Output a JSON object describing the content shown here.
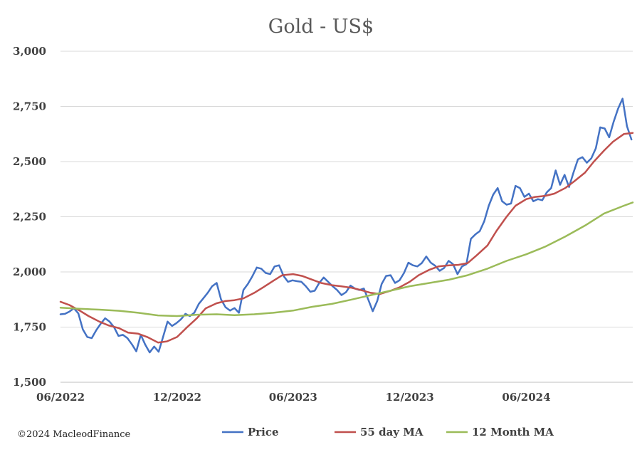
{
  "chart_data": {
    "type": "line",
    "title": "Gold - US$",
    "xlabel": "",
    "ylabel": "",
    "ylim": [
      1500,
      3000
    ],
    "xlim": [
      "2022-06-01",
      "2024-11-15"
    ],
    "y_ticks": [
      "1,500",
      "1,750",
      "2,000",
      "2,250",
      "2,500",
      "2,750",
      "3,000"
    ],
    "y_tick_values": [
      1500,
      1750,
      2000,
      2250,
      2500,
      2750,
      3000
    ],
    "x_ticks": [
      "06/2022",
      "12/2022",
      "06/2023",
      "12/2023",
      "06/2024"
    ],
    "x_tick_dates": [
      "2022-06-01",
      "2022-12-01",
      "2023-06-01",
      "2023-12-01",
      "2024-06-01"
    ],
    "grid": "horizontal",
    "legend_position": "bottom",
    "copyright": "©2024 MacleodFinance",
    "series": [
      {
        "name": "Price",
        "color": "#4472C4",
        "points": [
          [
            "2022-06-01",
            1808
          ],
          [
            "2022-06-08",
            1810
          ],
          [
            "2022-06-15",
            1820
          ],
          [
            "2022-06-22",
            1835
          ],
          [
            "2022-06-29",
            1812
          ],
          [
            "2022-07-06",
            1740
          ],
          [
            "2022-07-13",
            1705
          ],
          [
            "2022-07-20",
            1700
          ],
          [
            "2022-07-27",
            1735
          ],
          [
            "2022-08-03",
            1765
          ],
          [
            "2022-08-10",
            1790
          ],
          [
            "2022-08-17",
            1775
          ],
          [
            "2022-08-24",
            1750
          ],
          [
            "2022-08-31",
            1710
          ],
          [
            "2022-09-07",
            1715
          ],
          [
            "2022-09-14",
            1700
          ],
          [
            "2022-09-21",
            1672
          ],
          [
            "2022-09-28",
            1640
          ],
          [
            "2022-10-05",
            1715
          ],
          [
            "2022-10-12",
            1670
          ],
          [
            "2022-10-19",
            1635
          ],
          [
            "2022-10-26",
            1662
          ],
          [
            "2022-11-02",
            1638
          ],
          [
            "2022-11-09",
            1705
          ],
          [
            "2022-11-16",
            1775
          ],
          [
            "2022-11-23",
            1755
          ],
          [
            "2022-11-30",
            1768
          ],
          [
            "2022-12-07",
            1785
          ],
          [
            "2022-12-14",
            1810
          ],
          [
            "2022-12-21",
            1800
          ],
          [
            "2022-12-28",
            1815
          ],
          [
            "2023-01-04",
            1855
          ],
          [
            "2023-01-11",
            1880
          ],
          [
            "2023-01-18",
            1905
          ],
          [
            "2023-01-25",
            1935
          ],
          [
            "2023-02-01",
            1950
          ],
          [
            "2023-02-08",
            1875
          ],
          [
            "2023-02-15",
            1840
          ],
          [
            "2023-02-22",
            1825
          ],
          [
            "2023-03-01",
            1836
          ],
          [
            "2023-03-08",
            1815
          ],
          [
            "2023-03-15",
            1918
          ],
          [
            "2023-03-22",
            1945
          ],
          [
            "2023-03-29",
            1980
          ],
          [
            "2023-04-05",
            2020
          ],
          [
            "2023-04-12",
            2015
          ],
          [
            "2023-04-19",
            1995
          ],
          [
            "2023-04-26",
            1990
          ],
          [
            "2023-05-03",
            2025
          ],
          [
            "2023-05-10",
            2030
          ],
          [
            "2023-05-17",
            1982
          ],
          [
            "2023-05-24",
            1955
          ],
          [
            "2023-05-31",
            1962
          ],
          [
            "2023-06-07",
            1958
          ],
          [
            "2023-06-14",
            1955
          ],
          [
            "2023-06-21",
            1935
          ],
          [
            "2023-06-28",
            1910
          ],
          [
            "2023-07-05",
            1915
          ],
          [
            "2023-07-12",
            1950
          ],
          [
            "2023-07-19",
            1975
          ],
          [
            "2023-07-26",
            1955
          ],
          [
            "2023-08-02",
            1935
          ],
          [
            "2023-08-09",
            1918
          ],
          [
            "2023-08-16",
            1895
          ],
          [
            "2023-08-23",
            1908
          ],
          [
            "2023-08-30",
            1938
          ],
          [
            "2023-09-06",
            1925
          ],
          [
            "2023-09-13",
            1918
          ],
          [
            "2023-09-20",
            1925
          ],
          [
            "2023-09-27",
            1875
          ],
          [
            "2023-10-04",
            1822
          ],
          [
            "2023-10-11",
            1868
          ],
          [
            "2023-10-18",
            1945
          ],
          [
            "2023-10-25",
            1982
          ],
          [
            "2023-11-01",
            1985
          ],
          [
            "2023-11-08",
            1950
          ],
          [
            "2023-11-15",
            1962
          ],
          [
            "2023-11-22",
            1995
          ],
          [
            "2023-11-29",
            2042
          ],
          [
            "2023-12-06",
            2030
          ],
          [
            "2023-12-13",
            2025
          ],
          [
            "2023-12-20",
            2040
          ],
          [
            "2023-12-27",
            2070
          ],
          [
            "2024-01-03",
            2042
          ],
          [
            "2024-01-10",
            2028
          ],
          [
            "2024-01-17",
            2005
          ],
          [
            "2024-01-24",
            2018
          ],
          [
            "2024-01-31",
            2050
          ],
          [
            "2024-02-07",
            2035
          ],
          [
            "2024-02-14",
            1990
          ],
          [
            "2024-02-21",
            2025
          ],
          [
            "2024-02-28",
            2035
          ],
          [
            "2024-03-06",
            2150
          ],
          [
            "2024-03-13",
            2170
          ],
          [
            "2024-03-20",
            2185
          ],
          [
            "2024-03-27",
            2230
          ],
          [
            "2024-04-03",
            2300
          ],
          [
            "2024-04-10",
            2350
          ],
          [
            "2024-04-17",
            2380
          ],
          [
            "2024-04-24",
            2320
          ],
          [
            "2024-05-01",
            2305
          ],
          [
            "2024-05-08",
            2310
          ],
          [
            "2024-05-15",
            2390
          ],
          [
            "2024-05-22",
            2380
          ],
          [
            "2024-05-29",
            2340
          ],
          [
            "2024-06-05",
            2355
          ],
          [
            "2024-06-12",
            2320
          ],
          [
            "2024-06-19",
            2330
          ],
          [
            "2024-06-26",
            2325
          ],
          [
            "2024-07-03",
            2360
          ],
          [
            "2024-07-10",
            2380
          ],
          [
            "2024-07-17",
            2460
          ],
          [
            "2024-07-24",
            2395
          ],
          [
            "2024-07-31",
            2440
          ],
          [
            "2024-08-07",
            2385
          ],
          [
            "2024-08-14",
            2450
          ],
          [
            "2024-08-21",
            2510
          ],
          [
            "2024-08-28",
            2520
          ],
          [
            "2024-09-04",
            2495
          ],
          [
            "2024-09-11",
            2515
          ],
          [
            "2024-09-18",
            2560
          ],
          [
            "2024-09-25",
            2655
          ],
          [
            "2024-10-02",
            2650
          ],
          [
            "2024-10-09",
            2610
          ],
          [
            "2024-10-16",
            2680
          ],
          [
            "2024-10-23",
            2740
          ],
          [
            "2024-10-30",
            2785
          ],
          [
            "2024-11-06",
            2660
          ],
          [
            "2024-11-13",
            2600
          ]
        ]
      },
      {
        "name": "55 day MA",
        "color": "#C0504D",
        "points": [
          [
            "2022-06-01",
            1865
          ],
          [
            "2022-06-15",
            1850
          ],
          [
            "2022-07-01",
            1825
          ],
          [
            "2022-07-15",
            1800
          ],
          [
            "2022-08-01",
            1775
          ],
          [
            "2022-08-15",
            1758
          ],
          [
            "2022-09-01",
            1745
          ],
          [
            "2022-09-15",
            1725
          ],
          [
            "2022-10-01",
            1720
          ],
          [
            "2022-10-15",
            1705
          ],
          [
            "2022-11-01",
            1680
          ],
          [
            "2022-11-15",
            1685
          ],
          [
            "2022-12-01",
            1705
          ],
          [
            "2022-12-15",
            1745
          ],
          [
            "2023-01-01",
            1790
          ],
          [
            "2023-01-15",
            1835
          ],
          [
            "2023-02-01",
            1858
          ],
          [
            "2023-02-15",
            1868
          ],
          [
            "2023-03-01",
            1872
          ],
          [
            "2023-03-15",
            1880
          ],
          [
            "2023-04-01",
            1905
          ],
          [
            "2023-04-15",
            1930
          ],
          [
            "2023-05-01",
            1960
          ],
          [
            "2023-05-15",
            1985
          ],
          [
            "2023-06-01",
            1990
          ],
          [
            "2023-06-15",
            1982
          ],
          [
            "2023-07-01",
            1965
          ],
          [
            "2023-07-15",
            1950
          ],
          [
            "2023-08-01",
            1940
          ],
          [
            "2023-08-15",
            1935
          ],
          [
            "2023-09-01",
            1928
          ],
          [
            "2023-09-15",
            1918
          ],
          [
            "2023-10-01",
            1905
          ],
          [
            "2023-10-15",
            1900
          ],
          [
            "2023-11-01",
            1915
          ],
          [
            "2023-11-15",
            1930
          ],
          [
            "2023-12-01",
            1955
          ],
          [
            "2023-12-15",
            1985
          ],
          [
            "2024-01-01",
            2010
          ],
          [
            "2024-01-15",
            2025
          ],
          [
            "2024-02-01",
            2030
          ],
          [
            "2024-02-15",
            2032
          ],
          [
            "2024-03-01",
            2040
          ],
          [
            "2024-03-15",
            2075
          ],
          [
            "2024-04-01",
            2120
          ],
          [
            "2024-04-15",
            2185
          ],
          [
            "2024-05-01",
            2250
          ],
          [
            "2024-05-15",
            2300
          ],
          [
            "2024-06-01",
            2330
          ],
          [
            "2024-06-15",
            2340
          ],
          [
            "2024-07-01",
            2345
          ],
          [
            "2024-07-15",
            2355
          ],
          [
            "2024-08-01",
            2380
          ],
          [
            "2024-08-15",
            2410
          ],
          [
            "2024-09-01",
            2450
          ],
          [
            "2024-09-15",
            2500
          ],
          [
            "2024-10-01",
            2550
          ],
          [
            "2024-10-15",
            2590
          ],
          [
            "2024-11-01",
            2625
          ],
          [
            "2024-11-15",
            2630
          ]
        ]
      },
      {
        "name": "12 Month MA",
        "color": "#9BBB59",
        "points": [
          [
            "2022-06-01",
            1838
          ],
          [
            "2022-07-01",
            1833
          ],
          [
            "2022-08-01",
            1829
          ],
          [
            "2022-09-01",
            1824
          ],
          [
            "2022-10-01",
            1815
          ],
          [
            "2022-11-01",
            1803
          ],
          [
            "2022-12-01",
            1800
          ],
          [
            "2023-01-01",
            1806
          ],
          [
            "2023-02-01",
            1808
          ],
          [
            "2023-03-01",
            1804
          ],
          [
            "2023-04-01",
            1808
          ],
          [
            "2023-05-01",
            1815
          ],
          [
            "2023-06-01",
            1825
          ],
          [
            "2023-07-01",
            1842
          ],
          [
            "2023-08-01",
            1855
          ],
          [
            "2023-09-01",
            1875
          ],
          [
            "2023-10-01",
            1895
          ],
          [
            "2023-11-01",
            1915
          ],
          [
            "2023-12-01",
            1935
          ],
          [
            "2024-01-01",
            1950
          ],
          [
            "2024-02-01",
            1965
          ],
          [
            "2024-03-01",
            1985
          ],
          [
            "2024-04-01",
            2015
          ],
          [
            "2024-05-01",
            2050
          ],
          [
            "2024-06-01",
            2080
          ],
          [
            "2024-07-01",
            2115
          ],
          [
            "2024-08-01",
            2160
          ],
          [
            "2024-09-01",
            2210
          ],
          [
            "2024-10-01",
            2265
          ],
          [
            "2024-11-01",
            2300
          ],
          [
            "2024-11-15",
            2315
          ]
        ]
      }
    ]
  }
}
